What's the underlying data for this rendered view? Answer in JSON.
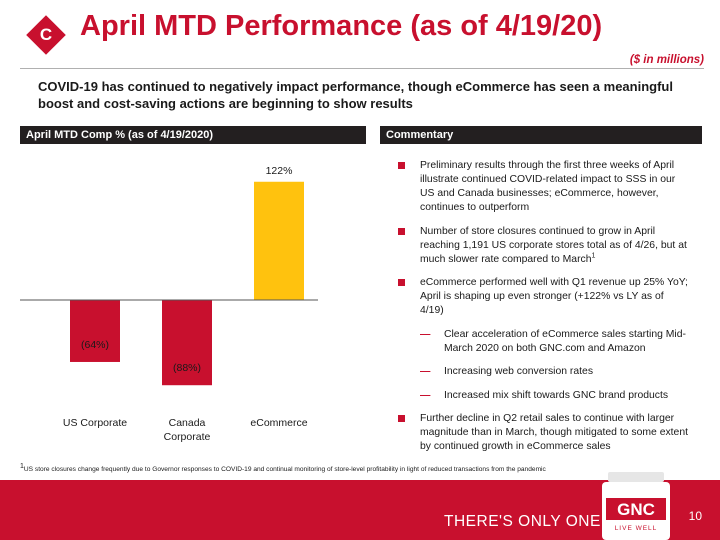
{
  "header": {
    "section_letter": "C",
    "title": "April MTD Performance (as of 4/19/20)",
    "units_note": "($ in millions)",
    "subtitle": "COVID-19 has continued to negatively impact performance, though eCommerce has seen a meaningful boost and cost-saving actions are beginning to show results"
  },
  "left_panel": {
    "heading": "April MTD Comp %  (as of 4/19/2020)"
  },
  "right_panel": {
    "heading": "Commentary"
  },
  "chart_data": {
    "type": "bar",
    "title": "April MTD Comp %  (as of 4/19/2020)",
    "categories": [
      "US Corporate",
      "Canada Corporate",
      "eCommerce"
    ],
    "category_lines": [
      [
        "US Corporate"
      ],
      [
        "Canada",
        "Corporate"
      ],
      [
        "eCommerce"
      ]
    ],
    "values": [
      -64,
      -88,
      122
    ],
    "value_labels": [
      "(64%)",
      "(88%)",
      "122%"
    ],
    "unit": "%",
    "colors": [
      "#c8102e",
      "#c8102e",
      "#ffc20e"
    ],
    "xlabel": "",
    "ylabel": "",
    "ylim": [
      -95,
      130
    ],
    "grid": false,
    "legend": "none"
  },
  "commentary": {
    "items": [
      {
        "level": 1,
        "text": "Preliminary results through the first three weeks of April illustrate continued COVID-related impact to SSS in our US and Canada businesses; eCommerce, however, continues to outperform"
      },
      {
        "level": 1,
        "text": "Number of store closures continued to grow in April reaching 1,191 US corporate stores total as of 4/26, but at much slower rate compared to March",
        "sup": "1"
      },
      {
        "level": 1,
        "text": "eCommerce performed well with Q1 revenue up 25% YoY; April is shaping up even stronger (+122% vs LY as of 4/19)"
      },
      {
        "level": 2,
        "text": "Clear acceleration of eCommerce sales starting Mid-March 2020 on both GNC.com and Amazon"
      },
      {
        "level": 2,
        "text": "Increasing web conversion rates"
      },
      {
        "level": 2,
        "text": "Increased mix shift towards GNC brand products"
      },
      {
        "level": 1,
        "text": "Further decline in Q2 retail sales to continue with larger magnitude than in March, though mitigated to some extent by continued growth in eCommerce sales"
      }
    ]
  },
  "footnote": {
    "sup": "1",
    "text": "US store closures change frequently due to Governor responses to COVID-19 and continual monitoring of store-level profitability in light of reduced transactions from the pandemic"
  },
  "footer": {
    "tagline": "THERE'S ONLY ONE",
    "logo_text": "GNC",
    "logo_subtext": "LIVE WELL",
    "page_number": "10"
  },
  "colors": {
    "brand_red": "#c8102e",
    "accent_yellow": "#ffc20e",
    "panel_dark": "#231f20"
  }
}
